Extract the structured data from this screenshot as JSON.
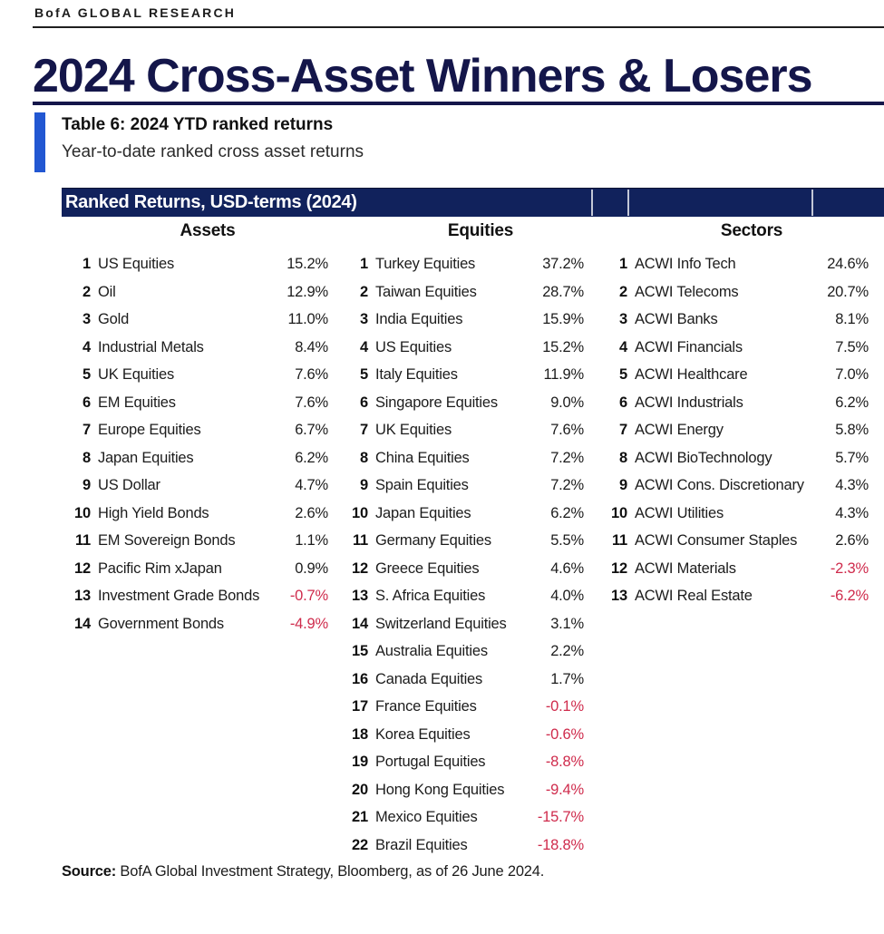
{
  "brand": "BofA GLOBAL RESEARCH",
  "title": "2024 Cross-Asset Winners & Losers",
  "caption": {
    "heading": "Table 6: 2024 YTD ranked returns",
    "subheading": "Year-to-date ranked cross asset returns"
  },
  "banner": "Ranked Returns, USD-terms (2024)",
  "source": {
    "label": "Source:",
    "text": " BofA Global Investment Strategy, Bloomberg, as of 26 June 2024."
  },
  "colors": {
    "navy": "#11225c",
    "titleNavy": "#14164a",
    "accent": "#2257d2",
    "negative": "#cf2b4c",
    "text": "#1a1a1a"
  },
  "chart_data": {
    "type": "table",
    "title": "Ranked Returns, USD-terms (2024)",
    "columns": [
      {
        "header": "Assets",
        "rows": [
          {
            "rank": 1,
            "name": "US Equities",
            "value": "15.2%"
          },
          {
            "rank": 2,
            "name": "Oil",
            "value": "12.9%"
          },
          {
            "rank": 3,
            "name": "Gold",
            "value": "11.0%"
          },
          {
            "rank": 4,
            "name": "Industrial Metals",
            "value": "8.4%"
          },
          {
            "rank": 5,
            "name": "UK Equities",
            "value": "7.6%"
          },
          {
            "rank": 6,
            "name": "EM Equities",
            "value": "7.6%"
          },
          {
            "rank": 7,
            "name": "Europe Equities",
            "value": "6.7%"
          },
          {
            "rank": 8,
            "name": "Japan Equities",
            "value": "6.2%"
          },
          {
            "rank": 9,
            "name": "US Dollar",
            "value": "4.7%"
          },
          {
            "rank": 10,
            "name": "High Yield Bonds",
            "value": "2.6%"
          },
          {
            "rank": 11,
            "name": "EM Sovereign Bonds",
            "value": "1.1%"
          },
          {
            "rank": 12,
            "name": "Pacific Rim xJapan",
            "value": "0.9%"
          },
          {
            "rank": 13,
            "name": "Investment Grade Bonds",
            "value": "-0.7%"
          },
          {
            "rank": 14,
            "name": "Government Bonds",
            "value": "-4.9%"
          }
        ]
      },
      {
        "header": "Equities",
        "rows": [
          {
            "rank": 1,
            "name": "Turkey Equities",
            "value": "37.2%"
          },
          {
            "rank": 2,
            "name": "Taiwan Equities",
            "value": "28.7%"
          },
          {
            "rank": 3,
            "name": "India Equities",
            "value": "15.9%"
          },
          {
            "rank": 4,
            "name": "US Equities",
            "value": "15.2%"
          },
          {
            "rank": 5,
            "name": "Italy Equities",
            "value": "11.9%"
          },
          {
            "rank": 6,
            "name": "Singapore Equities",
            "value": "9.0%"
          },
          {
            "rank": 7,
            "name": "UK Equities",
            "value": "7.6%"
          },
          {
            "rank": 8,
            "name": "China Equities",
            "value": "7.2%"
          },
          {
            "rank": 9,
            "name": "Spain Equities",
            "value": "7.2%"
          },
          {
            "rank": 10,
            "name": "Japan Equities",
            "value": "6.2%"
          },
          {
            "rank": 11,
            "name": "Germany Equities",
            "value": "5.5%"
          },
          {
            "rank": 12,
            "name": "Greece Equities",
            "value": "4.6%"
          },
          {
            "rank": 13,
            "name": "S. Africa Equities",
            "value": "4.0%"
          },
          {
            "rank": 14,
            "name": "Switzerland Equities",
            "value": "3.1%"
          },
          {
            "rank": 15,
            "name": "Australia Equities",
            "value": "2.2%"
          },
          {
            "rank": 16,
            "name": "Canada Equities",
            "value": "1.7%"
          },
          {
            "rank": 17,
            "name": "France Equities",
            "value": "-0.1%"
          },
          {
            "rank": 18,
            "name": "Korea Equities",
            "value": "-0.6%"
          },
          {
            "rank": 19,
            "name": "Portugal Equities",
            "value": "-8.8%"
          },
          {
            "rank": 20,
            "name": "Hong Kong Equities",
            "value": "-9.4%"
          },
          {
            "rank": 21,
            "name": "Mexico Equities",
            "value": "-15.7%"
          },
          {
            "rank": 22,
            "name": "Brazil Equities",
            "value": "-18.8%"
          }
        ]
      },
      {
        "header": "Sectors",
        "rows": [
          {
            "rank": 1,
            "name": "ACWI Info Tech",
            "value": "24.6%"
          },
          {
            "rank": 2,
            "name": "ACWI Telecoms",
            "value": "20.7%"
          },
          {
            "rank": 3,
            "name": "ACWI Banks",
            "value": "8.1%"
          },
          {
            "rank": 4,
            "name": "ACWI Financials",
            "value": "7.5%"
          },
          {
            "rank": 5,
            "name": "ACWI Healthcare",
            "value": "7.0%"
          },
          {
            "rank": 6,
            "name": "ACWI Industrials",
            "value": "6.2%"
          },
          {
            "rank": 7,
            "name": "ACWI Energy",
            "value": "5.8%"
          },
          {
            "rank": 8,
            "name": "ACWI BioTechnology",
            "value": "5.7%"
          },
          {
            "rank": 9,
            "name": "ACWI Cons. Discretionary",
            "value": "4.3%"
          },
          {
            "rank": 10,
            "name": "ACWI Utilities",
            "value": "4.3%"
          },
          {
            "rank": 11,
            "name": "ACWI Consumer Staples",
            "value": "2.6%"
          },
          {
            "rank": 12,
            "name": "ACWI Materials",
            "value": "-2.3%"
          },
          {
            "rank": 13,
            "name": "ACWI Real Estate",
            "value": "-6.2%"
          }
        ]
      }
    ]
  }
}
